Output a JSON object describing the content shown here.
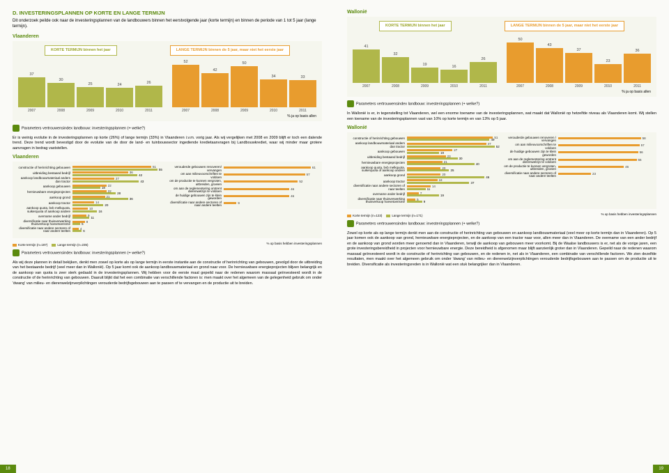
{
  "section_title": "D. INVESTERINGSPLANNEN OP KORTE EN LANGE TERMIJN",
  "intro": "Dit onderzoek peilde ook naar de investeringsplannen van de landbouwers binnen het eerstvolgende jaar (korte termijn) en binnen de periode van 1 tot 5 jaar (lange termijn).",
  "vlaanderen_label": "Vlaanderen",
  "wallonie_label": "Wallonië",
  "legend_korte": "KORTE TERMIJN\nbinnen het jaar",
  "legend_lange": "LANGE TERMIJN\nbinnen de 5 jaar, maar niet het eerste jaar",
  "chart_vl": {
    "years": [
      "2007",
      "2008",
      "2009",
      "2010",
      "2011",
      "2007",
      "2008",
      "2009",
      "2010",
      "2011"
    ],
    "values": [
      37,
      30,
      25,
      24,
      26,
      52,
      42,
      50,
      34,
      33
    ],
    "colors": [
      "green",
      "green",
      "green",
      "green",
      "green",
      "orange",
      "orange",
      "orange",
      "orange",
      "orange"
    ],
    "max": 60
  },
  "chart_wa": {
    "years": [
      "2007",
      "2008",
      "2009",
      "2010",
      "2011",
      "2007",
      "2008",
      "2009",
      "2010",
      "2011"
    ],
    "values": [
      41,
      32,
      19,
      16,
      26,
      50,
      43,
      37,
      23,
      36
    ],
    "colors": [
      "green",
      "green",
      "green",
      "green",
      "green",
      "orange",
      "orange",
      "orange",
      "orange",
      "orange"
    ],
    "max": 60
  },
  "axis_note": "% ja op basis allen",
  "param_line": "Parameters vertrouwensindex landbouw: investeringsplannen (+ welke?)",
  "body_vl_1": "Er is weinig evolutie in de investeringsplannen op korte (26%) of lange termijn (33%) in Vlaanderen i.v.m. vorig jaar. Als wij vergelijken met 2008 en 2009 blijft er toch een dalende trend. Deze trend wordt bevestigd door de evolutie van de door de land- en tuinbouwsector ingediende kredietaanvragen bij Landbouwkrediet, waar wij minder maar grotere aanvragen in bedrag vaststellen.",
  "body_wa_1": "In Wallonië is er, in tegenstelling tot Vlaanderen, wel een enorme toename van de investeringsplannen, wat maakt dat Wallonië op hetzelfde niveau als Vlaanderen komt. Wij stellen een toename van de investeringsplannen vast van 10% op korte termijn en van 13% op 5 jaar.",
  "hbar_vl_left": {
    "rows": [
      {
        "label": "constructie of herinrichting gebouwen",
        "k": 51,
        "l": 55
      },
      {
        "label": "uitbreiding bestaand bedrijf",
        "k": 36,
        "l": 42
      },
      {
        "label": "aankoop landbouwmateriaal anders dan tractor",
        "k": 27,
        "l": 43
      },
      {
        "label": "aankoop gebouwen",
        "k": 22,
        "l": 18
      },
      {
        "label": "hernieuwbare energieprojecten",
        "k": 22,
        "l": 28
      },
      {
        "label": "aankoop grond",
        "k": 21,
        "l": 36
      },
      {
        "label": "aankoop tractor",
        "k": 14,
        "l": 20
      },
      {
        "label": "aankoop quota, bvb melkquota, suikerquota of aankoop andere",
        "k": 10,
        "l": 16
      },
      {
        "label": "overname ander bedrijf",
        "k": 9,
        "l": 11
      },
      {
        "label": "diversificatie naar thuisverwerking thuisverkoop hoevetoerisme",
        "k": 8,
        "l": 5
      },
      {
        "label": "diversificatie naar andere sectoren of naar andere teelten",
        "k": 4,
        "l": 6
      }
    ],
    "max": 60
  },
  "hbar_vl_right": {
    "rows": [
      {
        "label": "verouderde gebouwen renoveren/ vervangen",
        "k": 61,
        "l": 0
      },
      {
        "label": "om aan milieuvoorschriften te voldoen",
        "k": 57,
        "l": 0
      },
      {
        "label": "om de productie te kunnen vergroten, uitbreiden, groeien",
        "k": 52,
        "l": 0
      },
      {
        "label": "om aan de reglementering omtrent dierenwelzijn te voldoen",
        "k": 46,
        "l": 0
      },
      {
        "label": "de huidige gebouwen zijn te klein geworden",
        "k": 46,
        "l": 0
      },
      {
        "label": "diversificatie naar andere sectoren of naar andere teelten",
        "k": 9,
        "l": 0
      }
    ],
    "max": 65
  },
  "hbar_wa_left": {
    "rows": [
      {
        "label": "constructie of herinrichting gebouwen",
        "k": 51,
        "l": 49
      },
      {
        "label": "aankoop landbouwmateriaal anders dan tractor",
        "k": 47,
        "l": 52
      },
      {
        "label": "aankoop gebouwen",
        "k": 27,
        "l": 19
      },
      {
        "label": "uitbreiding bestaand bedrijf",
        "k": 23,
        "l": 30
      },
      {
        "label": "hernieuwbare energieprojecten",
        "k": 21,
        "l": 40
      },
      {
        "label": "aankoop quota, bvb melkquota, suikerquota of aankoop andere",
        "k": 20,
        "l": 25
      },
      {
        "label": "aankoop grond",
        "k": 20,
        "l": 46
      },
      {
        "label": "aankoop tractor",
        "k": 18,
        "l": 37
      },
      {
        "label": "diversificatie naar andere sectoren of naar teelten",
        "k": 14,
        "l": 11
      },
      {
        "label": "overname ander bedrijf",
        "k": 7,
        "l": 19
      },
      {
        "label": "diversificatie naar thuisverwerking thuisverkoop hoevetoerisme",
        "k": 5,
        "l": 9
      }
    ],
    "max": 55
  },
  "hbar_wa_right": {
    "rows": [
      {
        "label": "verouderde gebouwen renoveren / vervangen",
        "k": 58,
        "l": 0
      },
      {
        "label": "om aan milieuvoorschriften te voldoen",
        "k": 57,
        "l": 0
      },
      {
        "label": "de huidige gebouwen zijn te klein geworden",
        "k": 56,
        "l": 0
      },
      {
        "label": "om aan de reglementering omtrent dierenwelzijn te voldoen",
        "k": 55,
        "l": 0
      },
      {
        "label": "om de productie te kunnen vergroten, uitbreiden, groeien",
        "k": 46,
        "l": 0
      },
      {
        "label": "diversificatie naar andere sectoren of naar andere teelten",
        "k": 23,
        "l": 0
      }
    ],
    "max": 65
  },
  "hlegend_k_vl": "Korte termijn (n=187)",
  "hlegend_l_vl": "Lange termijn (n=235)",
  "hlegend_k_wa": "Korte termijn (n=123)",
  "hlegend_l_wa": "Lange termijn (n=171)",
  "hbar_note": "% op basis hebben investeringsplannen",
  "body_vl_2": "Als wij deze plannen in detail bekijken, denkt men zowel op korte als op lange termijn in eerste instantie aan de constructie of herinrichting van gebouwen, gevolgd door de uitbreiding van het bestaande bedrijf (veel meer dan in Wallonië). Op 5 jaar komt ook de aankoop landbouwmateriaal en grond naar voor. De hernieuwbare energieprojecten blijven belangrijk en de aankoop van quota is zeer sterk gedaald in de investeringsplannen. Wij hebben voor de eerste maal gepeild naar de redenen waarom massaal geïnvesteerd wordt in de constructie of de herinrichting van gebouwen. Daaruit blijkt dat het een combinatie van verschillende factoren is: men maakt over het algemeen van de gelegenheid gebruik om onder 'dwang' van milieu- en dierenwelzijnverplichtingen verouderde bedrijfsgebouwen aan te passen of te vervangen en de productie uit te breiden.",
  "body_wa_2": "Zowel op korte als op lange termijn denkt men aan de constructie of herinrichting van gebouwen en aankoop landbouwmateriaal (veel meer op korte termijn dan in Vlaanderen). Op 5 jaar komen ook de aankoop van grond, hernieuwbare energieprojecten, en de aankoop van een tractor naar voor, allen meer dan in Vlaanderen. De overname van een ander bedrijf en de aankoop van grond worden meer genoemd dan in Vlaanderen, terwijl de aankoop van gebouwen meer voorkomt. Bij de Waalse landbouwers is er, net als de vorige jaren, een grote investeringsbereidheid in projecten voor hernieuwbare energie. Deze bereidheid is afgenomen maar blijft aanzienlijk groter dan in Vlaanderen. Gepeild naar de redenen waarom massaal geïnvesteerd wordt in de constructie of herinrichting van gebouwen, en de redenen in, net als in Vlaanderen, een combinatie van verschillende factoren. We zien dezelfde resultaten, men maakt over het algemeen gebruik om onder 'dwang' van milieu- en dierenwelzijnverplichtingen verouderde bedrijfsgebouwen aan te passen om de productie uit te breiden. Diversificatie als investeringsreden is in Wallonië wat een stuk belangrijker dan in Vlaanderen.",
  "page_left": "18",
  "page_right": "19"
}
